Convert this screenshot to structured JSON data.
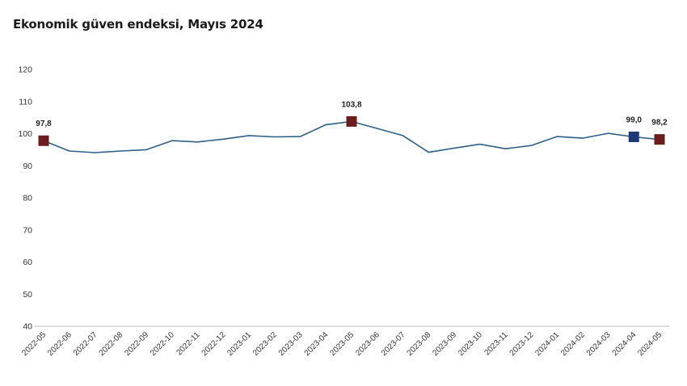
{
  "chart_data": {
    "type": "line",
    "title": "Ekonomik güven endeksi, Mayıs 2024",
    "categories": [
      "2022-05",
      "2022-06",
      "2022-07",
      "2022-08",
      "2022-09",
      "2022-10",
      "2022-11",
      "2022-12",
      "2023-01",
      "2023-02",
      "2023-03",
      "2023-04",
      "2023-05",
      "2023-06",
      "2023-07",
      "2023-08",
      "2023-09",
      "2023-10",
      "2023-11",
      "2023-12",
      "2024-01",
      "2024-02",
      "2024-03",
      "2024-04",
      "2024-05"
    ],
    "series": [
      {
        "values": [
          97.8,
          94.6,
          94.1,
          94.6,
          95.0,
          97.8,
          97.4,
          98.3,
          99.4,
          99.0,
          99.1,
          102.8,
          103.8,
          101.6,
          99.4,
          94.2,
          95.5,
          96.7,
          95.3,
          96.3,
          99.1,
          98.6,
          100.1,
          99.0,
          98.2
        ]
      }
    ],
    "ylim": [
      40,
      120
    ],
    "yticks": [
      40,
      50,
      60,
      70,
      80,
      90,
      100,
      110,
      120
    ],
    "grid": false,
    "legend": "none",
    "line_color": "#2e5f86",
    "highlighted_points": [
      {
        "category": "2022-05",
        "value": 97.8,
        "label": "97,8",
        "color": "#6b1c1c"
      },
      {
        "category": "2023-05",
        "value": 103.8,
        "label": "103,8",
        "color": "#6b1c1c"
      },
      {
        "category": "2024-04",
        "value": 99.0,
        "label": "99,0",
        "color": "#1c3a78"
      },
      {
        "category": "2024-05",
        "value": 98.2,
        "label": "98,2",
        "color": "#6b1c1c"
      }
    ]
  }
}
